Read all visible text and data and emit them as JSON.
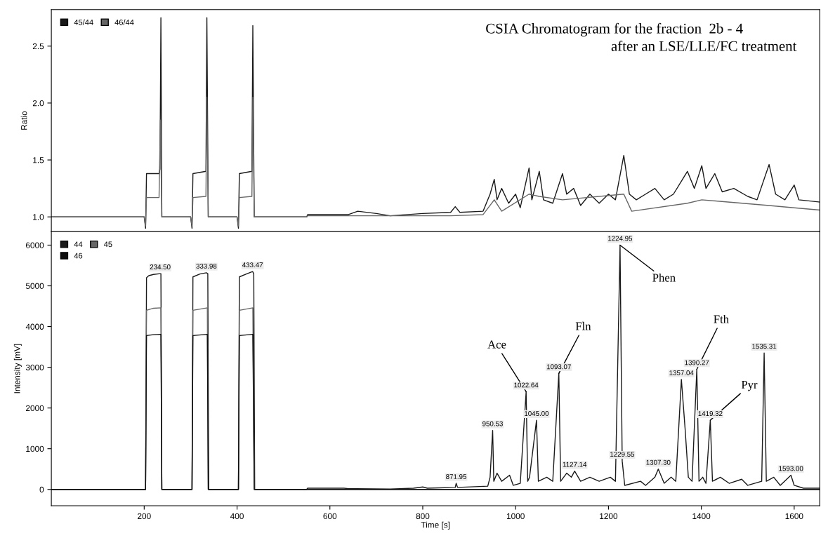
{
  "chart_data": [
    {
      "type": "line",
      "title": "CSIA Chromatogram for the fraction  2b - 4",
      "subtitle": "after an LSE/LLE/FC treatment",
      "ylabel": "Ratio",
      "xlim": [
        0,
        1655
      ],
      "xticks": [
        200,
        400,
        600,
        800,
        1000,
        1200,
        1400,
        1600
      ],
      "ylim": [
        0.87,
        2.82
      ],
      "yticks": [
        {
          "value": 1.0,
          "label": "1.0"
        },
        {
          "value": 1.5,
          "label": "1.5"
        },
        {
          "value": 2.0,
          "label": "2.0"
        },
        {
          "value": 2.5,
          "label": "2.5"
        }
      ],
      "tick_labels": "y",
      "legend": "top left",
      "grid": false,
      "series": [
        {
          "name": "45/44",
          "color": "#1a1a1a",
          "x": [
            0,
            200,
            203,
            205,
            232,
            234,
            236,
            238,
            300,
            303,
            305,
            333,
            335,
            338,
            400,
            403,
            405,
            432,
            434,
            437,
            550,
            552,
            640,
            660,
            700,
            730,
            800,
            860,
            870,
            880,
            930,
            945,
            954,
            960,
            970,
            985,
            1000,
            1010,
            1029,
            1035,
            1051,
            1060,
            1080,
            1101,
            1110,
            1125,
            1140,
            1160,
            1180,
            1200,
            1215,
            1233,
            1245,
            1260,
            1280,
            1300,
            1320,
            1340,
            1370,
            1385,
            1401,
            1410,
            1429,
            1445,
            1470,
            1500,
            1520,
            1546,
            1560,
            1580,
            1600,
            1610,
            1655
          ],
          "values": [
            1.0,
            1.0,
            0.9,
            1.38,
            1.38,
            1.42,
            2.75,
            1.0,
            1.0,
            0.9,
            1.38,
            1.4,
            2.75,
            1.0,
            1.0,
            0.9,
            1.38,
            1.4,
            2.68,
            1.0,
            1.0,
            1.02,
            1.02,
            1.05,
            1.03,
            1.01,
            1.03,
            1.04,
            1.09,
            1.04,
            1.05,
            1.2,
            1.33,
            1.15,
            1.25,
            1.12,
            1.2,
            1.08,
            1.43,
            1.15,
            1.4,
            1.15,
            1.12,
            1.38,
            1.2,
            1.25,
            1.1,
            1.2,
            1.12,
            1.2,
            1.15,
            1.54,
            1.2,
            1.15,
            1.2,
            1.25,
            1.15,
            1.2,
            1.4,
            1.25,
            1.45,
            1.25,
            1.38,
            1.22,
            1.25,
            1.18,
            1.15,
            1.46,
            1.2,
            1.15,
            1.28,
            1.15,
            1.13
          ]
        },
        {
          "name": "46/44",
          "color": "#666666",
          "x": [
            0,
            200,
            203,
            205,
            232,
            235,
            238,
            300,
            303,
            305,
            333,
            335,
            338,
            400,
            403,
            405,
            432,
            434,
            437,
            550,
            552,
            860,
            930,
            954,
            970,
            1029,
            1051,
            1101,
            1233,
            1250,
            1370,
            1401,
            1546,
            1600,
            1655
          ],
          "values": [
            1.0,
            1.0,
            0.92,
            1.17,
            1.17,
            1.85,
            1.0,
            1.0,
            0.92,
            1.17,
            1.18,
            2.05,
            1.0,
            1.0,
            0.92,
            1.17,
            1.18,
            2.05,
            1.0,
            1.0,
            1.01,
            1.01,
            1.02,
            1.15,
            1.05,
            1.2,
            1.18,
            1.15,
            1.2,
            1.05,
            1.12,
            1.15,
            1.1,
            1.08,
            1.06
          ]
        }
      ]
    },
    {
      "type": "line",
      "xlabel": "Time [s]",
      "ylabel": "Intensity [mV]",
      "xlim": [
        0,
        1655
      ],
      "xticks": [
        200,
        400,
        600,
        800,
        1000,
        1200,
        1400,
        1600
      ],
      "ylim": [
        -400,
        6330
      ],
      "yticks": [
        0,
        1000,
        2000,
        3000,
        4000,
        5000,
        6000
      ],
      "legend": "top left",
      "grid": false,
      "series": [
        {
          "name": "44",
          "color": "#1a1a1a",
          "x": [
            0,
            200,
            203,
            205,
            210,
            220,
            234.5,
            236,
            238,
            300,
            303,
            305,
            320,
            333.98,
            337,
            339,
            400,
            403,
            405,
            420,
            433.47,
            436,
            438,
            550,
            552,
            630,
            640,
            730,
            780,
            800,
            810,
            870,
            871.95,
            875,
            940,
            945,
            950.53,
            953,
            960,
            970,
            987,
            995,
            1010,
            1022.64,
            1026,
            1030,
            1045,
            1049,
            1067,
            1080,
            1093.07,
            1097,
            1110,
            1120,
            1127.14,
            1140,
            1160,
            1180,
            1204,
            1215,
            1224.95,
            1229.55,
            1235,
            1269,
            1280,
            1300,
            1307.3,
            1320,
            1335,
            1345,
            1357.04,
            1365,
            1372,
            1380,
            1390.27,
            1395,
            1403,
            1410,
            1419.32,
            1424,
            1441,
            1460,
            1487,
            1500,
            1530,
            1535.31,
            1540,
            1556,
            1570,
            1593,
            1600,
            1620,
            1655
          ],
          "values": [
            0,
            0,
            0,
            5200,
            5250,
            5280,
            5300,
            5300,
            0,
            0,
            0,
            5220,
            5290,
            5320,
            5300,
            0,
            0,
            0,
            5220,
            5290,
            5350,
            5300,
            0,
            0,
            30,
            30,
            20,
            10,
            30,
            60,
            30,
            50,
            150,
            50,
            80,
            300,
            1450,
            200,
            400,
            200,
            350,
            100,
            150,
            2400,
            200,
            300,
            1700,
            200,
            300,
            200,
            2850,
            200,
            400,
            300,
            450,
            200,
            300,
            200,
            300,
            200,
            6000,
            700,
            100,
            200,
            100,
            300,
            500,
            150,
            300,
            200,
            2700,
            1500,
            300,
            200,
            2950,
            200,
            300,
            150,
            1700,
            200,
            300,
            150,
            250,
            100,
            200,
            3350,
            200,
            300,
            100,
            350,
            100,
            30,
            30
          ]
        },
        {
          "name": "45",
          "color": "#666666",
          "x": [
            0,
            200,
            203,
            205,
            220,
            236,
            238,
            300,
            303,
            305,
            336,
            338,
            400,
            403,
            405,
            434,
            437,
            1655
          ],
          "values": [
            0,
            0,
            0,
            4400,
            4450,
            4460,
            0,
            0,
            0,
            4400,
            4460,
            0,
            0,
            0,
            4400,
            4460,
            0,
            0
          ]
        },
        {
          "name": "46",
          "color": "#0d0d0d",
          "x": [
            0,
            200,
            203,
            205,
            220,
            236,
            238,
            300,
            303,
            305,
            336,
            338,
            400,
            403,
            405,
            434,
            437,
            1655
          ],
          "values": [
            0,
            0,
            0,
            3780,
            3800,
            3810,
            0,
            0,
            0,
            3780,
            3810,
            0,
            0,
            0,
            3780,
            3810,
            0,
            0
          ]
        }
      ],
      "annotations": [
        {
          "text": "234.50",
          "x": 234.5,
          "y": 5300
        },
        {
          "text": "333.98",
          "x": 333.98,
          "y": 5320
        },
        {
          "text": "433.47",
          "x": 433.47,
          "y": 5350
        },
        {
          "text": "871.95",
          "x": 871.95,
          "y": 150
        },
        {
          "text": "950.53",
          "x": 950.53,
          "y": 1450
        },
        {
          "text": "1022.64",
          "x": 1022.64,
          "y": 2400
        },
        {
          "text": "1045.00",
          "x": 1045,
          "y": 1700
        },
        {
          "text": "1093.07",
          "x": 1093.07,
          "y": 2850
        },
        {
          "text": "1127.14",
          "x": 1127.14,
          "y": 450
        },
        {
          "text": "1224.95",
          "x": 1224.95,
          "y": 6000
        },
        {
          "text": "1229.55",
          "x": 1229.55,
          "y": 700
        },
        {
          "text": "1307.30",
          "x": 1307.3,
          "y": 500
        },
        {
          "text": "1357.04",
          "x": 1357.04,
          "y": 2700
        },
        {
          "text": "1390.27",
          "x": 1390.27,
          "y": 2950
        },
        {
          "text": "1419.32",
          "x": 1419.32,
          "y": 1700
        },
        {
          "text": "1535.31",
          "x": 1535.31,
          "y": 3350
        },
        {
          "text": "1593.00",
          "x": 1593,
          "y": 350
        },
        {
          "text": "Ace",
          "x": 1022.64,
          "y": 2400
        },
        {
          "text": "Fln",
          "x": 1093.07,
          "y": 2850
        },
        {
          "text": "Phen",
          "x": 1224.95,
          "y": 6000
        },
        {
          "text": "Fth",
          "x": 1390.27,
          "y": 2950
        },
        {
          "text": "Pyr",
          "x": 1419.32,
          "y": 1700
        }
      ]
    }
  ]
}
